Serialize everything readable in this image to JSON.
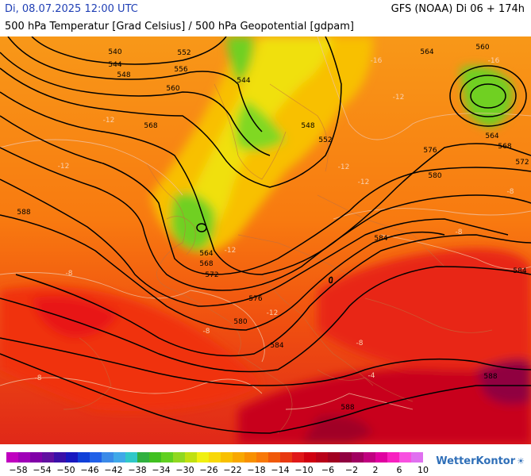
{
  "header": {
    "valid_time": "Di, 08.07.2025 12:00 UTC",
    "model_run": "GFS (NOAA) Di 06 + 174h",
    "title": "500 hPa Temperatur [Grad Celsius] / 500 hPa Geopotential [gdpam]"
  },
  "geopotential_labels": [
    "540",
    "544",
    "548",
    "552",
    "556",
    "560",
    "564",
    "568",
    "572",
    "576",
    "580",
    "584",
    "588"
  ],
  "temperature_labels": [
    "-16",
    "-12",
    "-8",
    "-4"
  ],
  "color_scale": {
    "swatches": [
      "#c000c0",
      "#a000b8",
      "#8000a8",
      "#6010a0",
      "#3a10a8",
      "#1818c0",
      "#1040d8",
      "#2060e8",
      "#3a8ae8",
      "#40a8e8",
      "#30c8c8",
      "#30b040",
      "#40c020",
      "#60d020",
      "#90d820",
      "#c0e010",
      "#f0f010",
      "#f8d808",
      "#f8c000",
      "#f8a800",
      "#f89000",
      "#f87808",
      "#f05808",
      "#e83810",
      "#e01818",
      "#d00010",
      "#b80018",
      "#a00020",
      "#900040",
      "#a00060",
      "#c00080",
      "#e000a0",
      "#f820c0",
      "#f850e0",
      "#e070f0"
    ],
    "tick_labels": [
      "−58",
      "−54",
      "−50",
      "−46",
      "−42",
      "−38",
      "−34",
      "−30",
      "−26",
      "−22",
      "−18",
      "−14",
      "−10",
      "−6",
      "−2",
      "2",
      "6",
      "10"
    ]
  },
  "brand": {
    "name": "WetterKontor",
    "icon": "sun-cloud-icon"
  }
}
